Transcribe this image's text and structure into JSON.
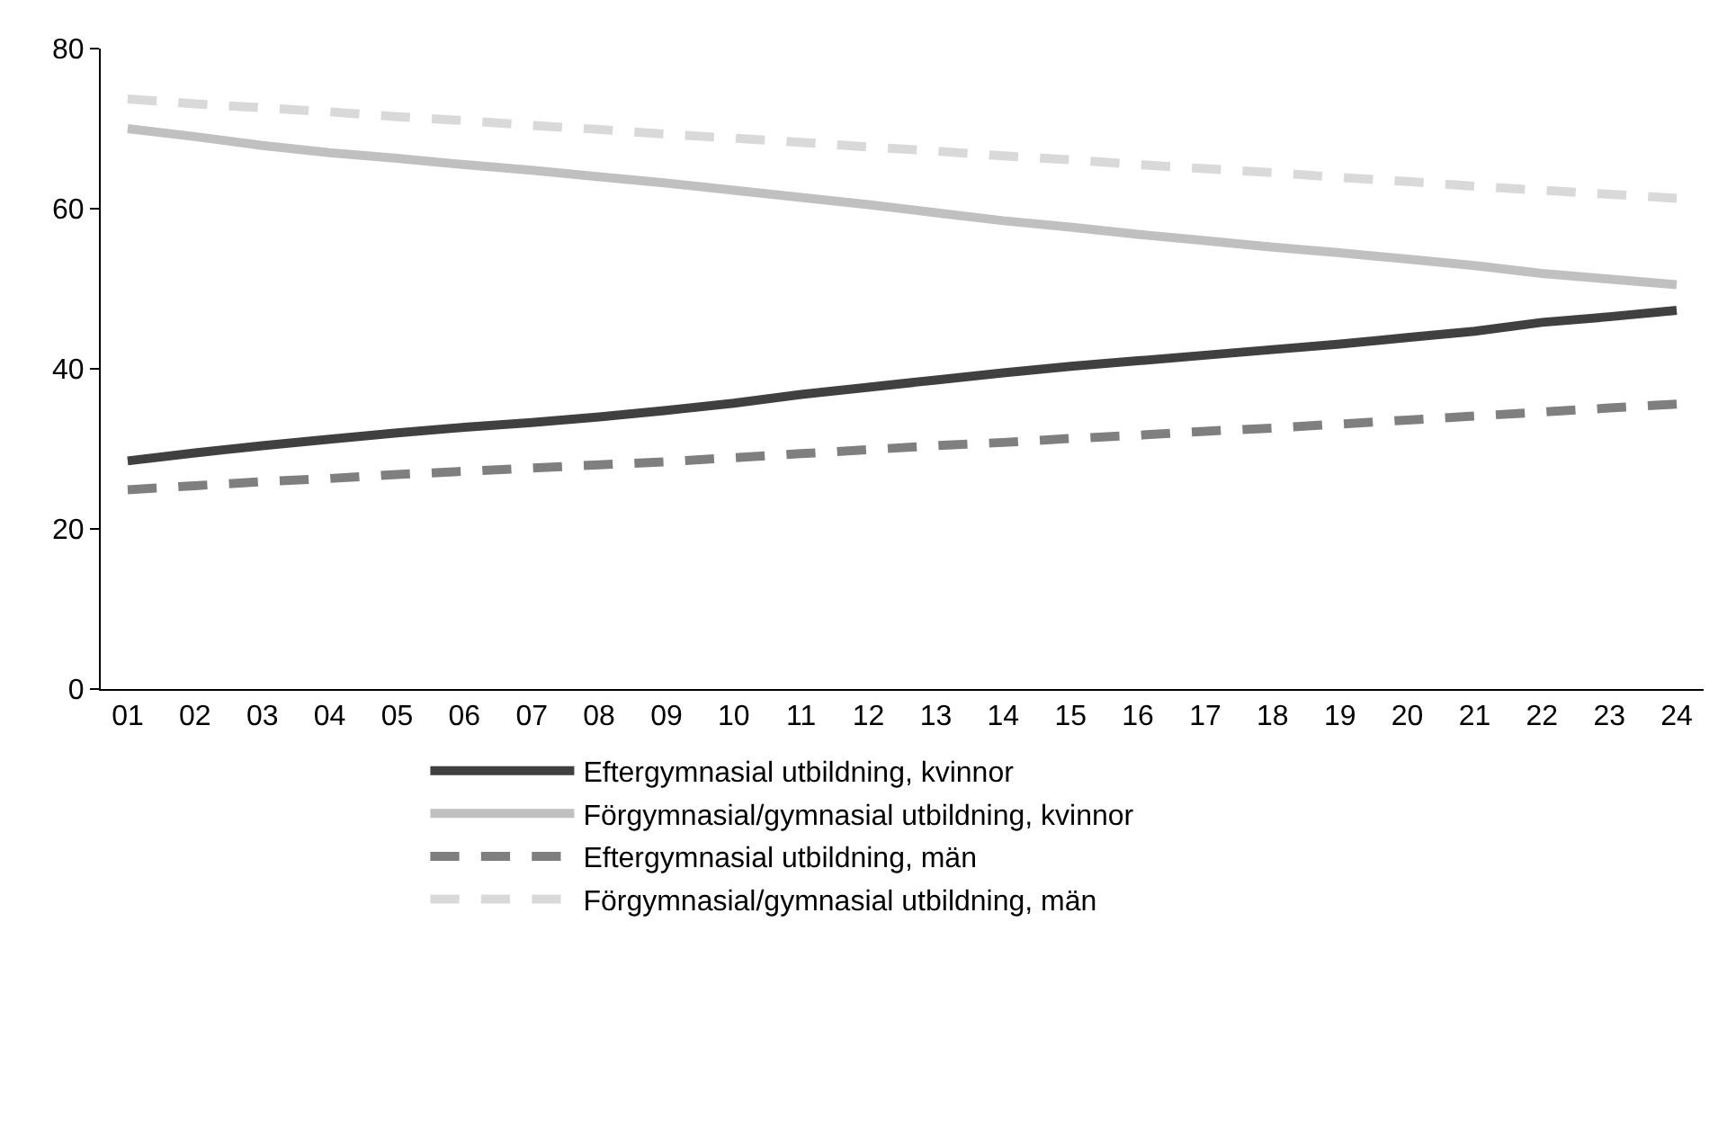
{
  "chart_data": {
    "type": "line",
    "categories": [
      "01",
      "02",
      "03",
      "04",
      "05",
      "06",
      "07",
      "08",
      "09",
      "10",
      "11",
      "12",
      "13",
      "14",
      "15",
      "16",
      "17",
      "18",
      "19",
      "20",
      "21",
      "22",
      "23",
      "24"
    ],
    "series": [
      {
        "name": "Eftergymnasial utbildning, kvinnor",
        "color": "#404040",
        "line_style": "solid",
        "values": [
          28.5,
          29.5,
          30.4,
          31.2,
          32.0,
          32.7,
          33.3,
          34.0,
          34.8,
          35.7,
          36.8,
          37.7,
          38.6,
          39.5,
          40.3,
          41.0,
          41.7,
          42.4,
          43.1,
          43.9,
          44.7,
          45.8,
          46.5,
          47.3
        ]
      },
      {
        "name": "Förgymnasial/gymnasial utbildning, kvinnor",
        "color": "#c0c0c0",
        "line_style": "solid",
        "values": [
          70.0,
          69.0,
          67.9,
          67.0,
          66.3,
          65.5,
          64.8,
          64.0,
          63.2,
          62.3,
          61.4,
          60.5,
          59.5,
          58.5,
          57.7,
          56.8,
          56.0,
          55.2,
          54.5,
          53.7,
          52.9,
          51.9,
          51.2,
          50.5
        ]
      },
      {
        "name": "Eftergymnasial utbildning, män",
        "color": "#7f7f7f",
        "line_style": "dashed",
        "values": [
          24.9,
          25.4,
          25.9,
          26.3,
          26.8,
          27.2,
          27.6,
          28.0,
          28.4,
          28.9,
          29.4,
          29.9,
          30.4,
          30.8,
          31.3,
          31.7,
          32.2,
          32.6,
          33.1,
          33.6,
          34.1,
          34.6,
          35.1,
          35.6
        ]
      },
      {
        "name": "Förgymnasial/gymnasial utbildning, män",
        "color": "#d9d9d9",
        "line_style": "dashed",
        "values": [
          73.7,
          73.1,
          72.6,
          72.1,
          71.5,
          71.0,
          70.4,
          69.9,
          69.3,
          68.8,
          68.3,
          67.7,
          67.2,
          66.6,
          66.1,
          65.5,
          65.0,
          64.5,
          63.9,
          63.4,
          62.8,
          62.3,
          61.8,
          61.3
        ]
      }
    ],
    "ylim": [
      0,
      80
    ],
    "yticks": [
      0,
      20,
      40,
      60,
      80
    ],
    "grid": false,
    "legend": "bottom",
    "marker": "none"
  }
}
